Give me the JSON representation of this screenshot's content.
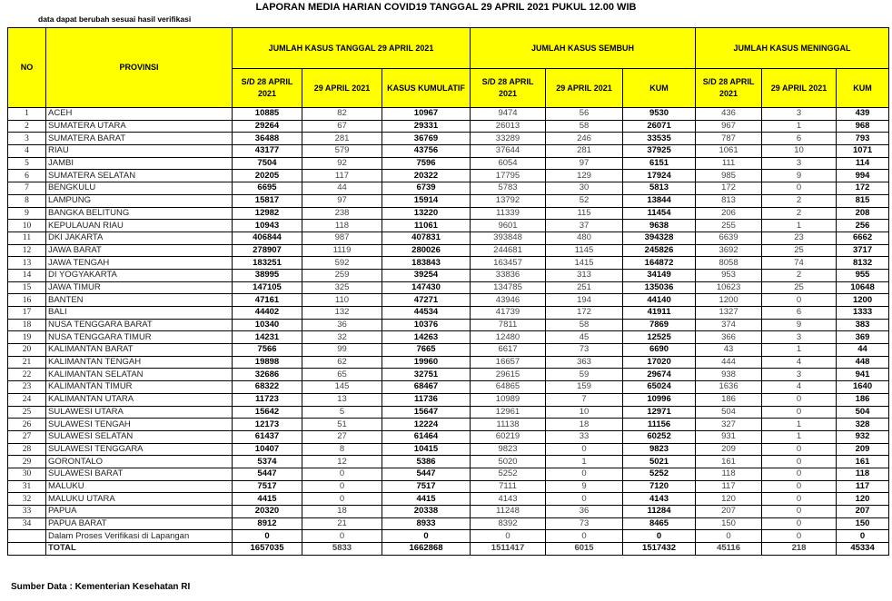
{
  "header": {
    "title": "LAPORAN MEDIA HARIAN COVID19 TANGGAL 29 APRIL 2021 PUKUL 12.00 WIB",
    "subtitle": "data dapat berubah sesuai hasil verifikasi"
  },
  "table": {
    "no_header": "NO",
    "province_header": "PROVINSI",
    "groups": [
      "JUMLAH KASUS TANGGAL 29 APRIL 2021",
      "JUMLAH KASUS SEMBUH",
      "JUMLAH KASUS MENINGGAL"
    ],
    "subheaders": [
      "S/D 28 APRIL 2021",
      "29 APRIL 2021",
      "KASUS KUMULATIF",
      "S/D 28 APRIL 2021",
      "29 APRIL 2021",
      "KUM",
      "S/D 28 APRIL 2021",
      "29 APRIL 2021",
      "KUM"
    ],
    "rows": [
      {
        "no": "1",
        "province": "ACEH",
        "values": [
          10885,
          82,
          10967,
          9474,
          56,
          9530,
          436,
          3,
          439
        ]
      },
      {
        "no": "2",
        "province": "SUMATERA UTARA",
        "values": [
          29264,
          67,
          29331,
          26013,
          58,
          26071,
          967,
          1,
          968
        ]
      },
      {
        "no": "3",
        "province": "SUMATERA BARAT",
        "values": [
          36488,
          281,
          36769,
          33289,
          246,
          33535,
          787,
          6,
          793
        ]
      },
      {
        "no": "4",
        "province": "RIAU",
        "values": [
          43177,
          579,
          43756,
          37644,
          281,
          37925,
          1061,
          10,
          1071
        ]
      },
      {
        "no": "5",
        "province": "JAMBI",
        "values": [
          7504,
          92,
          7596,
          6054,
          97,
          6151,
          111,
          3,
          114
        ]
      },
      {
        "no": "6",
        "province": "SUMATERA SELATAN",
        "values": [
          20205,
          117,
          20322,
          17795,
          129,
          17924,
          985,
          9,
          994
        ]
      },
      {
        "no": "7",
        "province": "BENGKULU",
        "values": [
          6695,
          44,
          6739,
          5783,
          30,
          5813,
          172,
          0,
          172
        ]
      },
      {
        "no": "8",
        "province": "LAMPUNG",
        "values": [
          15817,
          97,
          15914,
          13792,
          52,
          13844,
          813,
          2,
          815
        ]
      },
      {
        "no": "9",
        "province": "BANGKA BELITUNG",
        "values": [
          12982,
          238,
          13220,
          11339,
          115,
          11454,
          206,
          2,
          208
        ]
      },
      {
        "no": "10",
        "province": "KEPULAUAN RIAU",
        "values": [
          10943,
          118,
          11061,
          9601,
          37,
          9638,
          255,
          1,
          256
        ]
      },
      {
        "no": "11",
        "province": "DKI JAKARTA",
        "values": [
          406844,
          987,
          407831,
          393848,
          480,
          394328,
          6639,
          23,
          6662
        ]
      },
      {
        "no": "12",
        "province": "JAWA BARAT",
        "values": [
          278907,
          1119,
          280026,
          244681,
          1145,
          245826,
          3692,
          25,
          3717
        ]
      },
      {
        "no": "13",
        "province": "JAWA TENGAH",
        "values": [
          183251,
          592,
          183843,
          163457,
          1415,
          164872,
          8058,
          74,
          8132
        ]
      },
      {
        "no": "14",
        "province": "DI YOGYAKARTA",
        "values": [
          38995,
          259,
          39254,
          33836,
          313,
          34149,
          953,
          2,
          955
        ]
      },
      {
        "no": "15",
        "province": "JAWA TIMUR",
        "values": [
          147105,
          325,
          147430,
          134785,
          251,
          135036,
          10623,
          25,
          10648
        ]
      },
      {
        "no": "16",
        "province": "BANTEN",
        "values": [
          47161,
          110,
          47271,
          43946,
          194,
          44140,
          1200,
          0,
          1200
        ]
      },
      {
        "no": "17",
        "province": "BALI",
        "values": [
          44402,
          132,
          44534,
          41739,
          172,
          41911,
          1327,
          6,
          1333
        ]
      },
      {
        "no": "18",
        "province": "NUSA TENGGARA BARAT",
        "values": [
          10340,
          36,
          10376,
          7811,
          58,
          7869,
          374,
          9,
          383
        ]
      },
      {
        "no": "19",
        "province": "NUSA TENGGARA TIMUR",
        "values": [
          14231,
          32,
          14263,
          12480,
          45,
          12525,
          366,
          3,
          369
        ]
      },
      {
        "no": "20",
        "province": "KALIMANTAN BARAT",
        "values": [
          7566,
          99,
          7665,
          6617,
          73,
          6690,
          43,
          1,
          44
        ]
      },
      {
        "no": "21",
        "province": "KALIMANTAN TENGAH",
        "values": [
          19898,
          62,
          19960,
          16657,
          363,
          17020,
          444,
          4,
          448
        ]
      },
      {
        "no": "22",
        "province": "KALIMANTAN SELATAN",
        "values": [
          32686,
          65,
          32751,
          29615,
          59,
          29674,
          938,
          3,
          941
        ]
      },
      {
        "no": "23",
        "province": "KALIMANTAN TIMUR",
        "values": [
          68322,
          145,
          68467,
          64865,
          159,
          65024,
          1636,
          4,
          1640
        ]
      },
      {
        "no": "24",
        "province": "KALIMANTAN UTARA",
        "values": [
          11723,
          13,
          11736,
          10989,
          7,
          10996,
          186,
          0,
          186
        ]
      },
      {
        "no": "25",
        "province": "SULAWESI UTARA",
        "values": [
          15642,
          5,
          15647,
          12961,
          10,
          12971,
          504,
          0,
          504
        ]
      },
      {
        "no": "26",
        "province": "SULAWESI TENGAH",
        "values": [
          12173,
          51,
          12224,
          11138,
          18,
          11156,
          327,
          1,
          328
        ]
      },
      {
        "no": "27",
        "province": "SULAWESI SELATAN",
        "values": [
          61437,
          27,
          61464,
          60219,
          33,
          60252,
          931,
          1,
          932
        ]
      },
      {
        "no": "28",
        "province": "SULAWESI TENGGARA",
        "values": [
          10407,
          8,
          10415,
          9823,
          0,
          9823,
          209,
          0,
          209
        ]
      },
      {
        "no": "29",
        "province": "GORONTALO",
        "values": [
          5374,
          12,
          5386,
          5020,
          1,
          5021,
          161,
          0,
          161
        ]
      },
      {
        "no": "30",
        "province": "SULAWESI BARAT",
        "values": [
          5447,
          0,
          5447,
          5252,
          0,
          5252,
          118,
          0,
          118
        ]
      },
      {
        "no": "31",
        "province": "MALUKU",
        "values": [
          7517,
          0,
          7517,
          7111,
          9,
          7120,
          117,
          0,
          117
        ]
      },
      {
        "no": "32",
        "province": "MALUKU UTARA",
        "values": [
          4415,
          0,
          4415,
          4143,
          0,
          4143,
          120,
          0,
          120
        ]
      },
      {
        "no": "33",
        "province": "PAPUA",
        "values": [
          20320,
          18,
          20338,
          11248,
          36,
          11284,
          207,
          0,
          207
        ]
      },
      {
        "no": "34",
        "province": "PAPUA BARAT",
        "values": [
          8912,
          21,
          8933,
          8392,
          73,
          8465,
          150,
          0,
          150
        ]
      }
    ],
    "verification_row": {
      "province": "Dalam Proses Verifikasi di Lapangan",
      "values": [
        0,
        0,
        0,
        0,
        0,
        0,
        0,
        0,
        0
      ]
    },
    "total_row": {
      "province": "TOTAL",
      "values": [
        1657035,
        5833,
        1662868,
        1511417,
        6015,
        1517432,
        45116,
        218,
        45334
      ]
    }
  },
  "footer": "Sumber Data : Kementerian Kesehatan RI"
}
